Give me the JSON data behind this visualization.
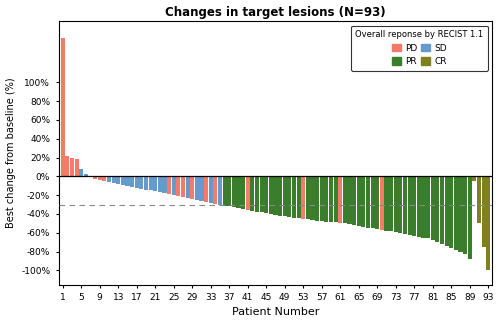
{
  "title": "Changes in target lesions (N=93)",
  "xlabel": "Patient Number",
  "ylabel": "Best change from baseline (%)",
  "dashed_line": -30,
  "ylim": [
    -115,
    165
  ],
  "yticks": [
    -100,
    -80,
    -60,
    -40,
    -20,
    0,
    20,
    40,
    60,
    80,
    100
  ],
  "ytick_labels": [
    "-100%",
    "-80%",
    "-60%",
    "-40%",
    "-20%",
    "0%",
    "20%",
    "40%",
    "60%",
    "80%",
    "100%"
  ],
  "xtick_positions": [
    1,
    5,
    9,
    13,
    17,
    21,
    25,
    29,
    33,
    37,
    41,
    45,
    49,
    53,
    57,
    61,
    65,
    69,
    73,
    77,
    81,
    85,
    89,
    93
  ],
  "colors": {
    "PD": "#F47B6A",
    "PR": "#3A7D2C",
    "SD": "#6699CC",
    "CR": "#808020"
  },
  "legend_title": "Overall reponse by RECIST 1.1",
  "patients": [
    {
      "value": 147,
      "category": "PD"
    },
    {
      "value": 22,
      "category": "PD"
    },
    {
      "value": 19,
      "category": "PD"
    },
    {
      "value": 18,
      "category": "PD"
    },
    {
      "value": 8,
      "category": "SD"
    },
    {
      "value": 2,
      "category": "SD"
    },
    {
      "value": -1,
      "category": "PD"
    },
    {
      "value": -3,
      "category": "PD"
    },
    {
      "value": -4,
      "category": "PD"
    },
    {
      "value": -5,
      "category": "PD"
    },
    {
      "value": -6,
      "category": "SD"
    },
    {
      "value": -7,
      "category": "SD"
    },
    {
      "value": -8,
      "category": "SD"
    },
    {
      "value": -9,
      "category": "SD"
    },
    {
      "value": -10,
      "category": "SD"
    },
    {
      "value": -11,
      "category": "SD"
    },
    {
      "value": -12,
      "category": "SD"
    },
    {
      "value": -13,
      "category": "SD"
    },
    {
      "value": -14,
      "category": "SD"
    },
    {
      "value": -15,
      "category": "SD"
    },
    {
      "value": -16,
      "category": "SD"
    },
    {
      "value": -17,
      "category": "SD"
    },
    {
      "value": -18,
      "category": "SD"
    },
    {
      "value": -19,
      "category": "PD"
    },
    {
      "value": -20,
      "category": "SD"
    },
    {
      "value": -21,
      "category": "PD"
    },
    {
      "value": -22,
      "category": "PD"
    },
    {
      "value": -23,
      "category": "SD"
    },
    {
      "value": -24,
      "category": "PD"
    },
    {
      "value": -25,
      "category": "SD"
    },
    {
      "value": -26,
      "category": "SD"
    },
    {
      "value": -27,
      "category": "PD"
    },
    {
      "value": -28,
      "category": "SD"
    },
    {
      "value": -29,
      "category": "PD"
    },
    {
      "value": -30,
      "category": "SD"
    },
    {
      "value": -31,
      "category": "PR"
    },
    {
      "value": -32,
      "category": "PR"
    },
    {
      "value": -33,
      "category": "PR"
    },
    {
      "value": -34,
      "category": "PR"
    },
    {
      "value": -35,
      "category": "PR"
    },
    {
      "value": -36,
      "category": "PD"
    },
    {
      "value": -37,
      "category": "PR"
    },
    {
      "value": -38,
      "category": "PR"
    },
    {
      "value": -38,
      "category": "PR"
    },
    {
      "value": -39,
      "category": "PR"
    },
    {
      "value": -40,
      "category": "PR"
    },
    {
      "value": -41,
      "category": "PR"
    },
    {
      "value": -42,
      "category": "PR"
    },
    {
      "value": -42,
      "category": "PR"
    },
    {
      "value": -43,
      "category": "PR"
    },
    {
      "value": -44,
      "category": "PR"
    },
    {
      "value": -44,
      "category": "PR"
    },
    {
      "value": -45,
      "category": "PD"
    },
    {
      "value": -45,
      "category": "PR"
    },
    {
      "value": -46,
      "category": "PR"
    },
    {
      "value": -47,
      "category": "PR"
    },
    {
      "value": -47,
      "category": "PR"
    },
    {
      "value": -48,
      "category": "PR"
    },
    {
      "value": -49,
      "category": "PR"
    },
    {
      "value": -49,
      "category": "PR"
    },
    {
      "value": -50,
      "category": "PD"
    },
    {
      "value": -50,
      "category": "PR"
    },
    {
      "value": -51,
      "category": "PR"
    },
    {
      "value": -52,
      "category": "PR"
    },
    {
      "value": -53,
      "category": "PR"
    },
    {
      "value": -54,
      "category": "PR"
    },
    {
      "value": -55,
      "category": "PR"
    },
    {
      "value": -55,
      "category": "PR"
    },
    {
      "value": -56,
      "category": "PR"
    },
    {
      "value": -57,
      "category": "PD"
    },
    {
      "value": -58,
      "category": "PR"
    },
    {
      "value": -58,
      "category": "PR"
    },
    {
      "value": -59,
      "category": "PR"
    },
    {
      "value": -60,
      "category": "PR"
    },
    {
      "value": -61,
      "category": "PR"
    },
    {
      "value": -62,
      "category": "PR"
    },
    {
      "value": -63,
      "category": "PR"
    },
    {
      "value": -64,
      "category": "PR"
    },
    {
      "value": -65,
      "category": "PR"
    },
    {
      "value": -66,
      "category": "PR"
    },
    {
      "value": -68,
      "category": "PR"
    },
    {
      "value": -70,
      "category": "PR"
    },
    {
      "value": -72,
      "category": "PR"
    },
    {
      "value": -74,
      "category": "PR"
    },
    {
      "value": -76,
      "category": "PR"
    },
    {
      "value": -78,
      "category": "PR"
    },
    {
      "value": -80,
      "category": "PR"
    },
    {
      "value": -82,
      "category": "PR"
    },
    {
      "value": -88,
      "category": "PR"
    },
    {
      "value": -5,
      "category": "CR"
    },
    {
      "value": -50,
      "category": "CR"
    },
    {
      "value": -75,
      "category": "CR"
    },
    {
      "value": -100,
      "category": "CR"
    }
  ]
}
